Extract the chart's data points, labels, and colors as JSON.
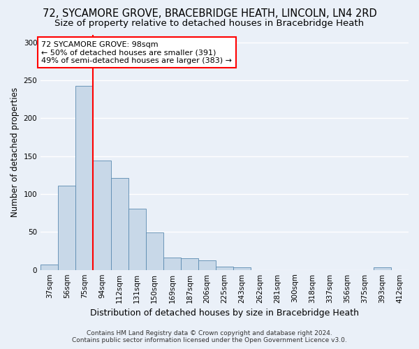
{
  "title": "72, SYCAMORE GROVE, BRACEBRIDGE HEATH, LINCOLN, LN4 2RD",
  "subtitle": "Size of property relative to detached houses in Bracebridge Heath",
  "xlabel": "Distribution of detached houses by size in Bracebridge Heath",
  "ylabel": "Number of detached properties",
  "footnote1": "Contains HM Land Registry data © Crown copyright and database right 2024.",
  "footnote2": "Contains public sector information licensed under the Open Government Licence v3.0.",
  "annotation_line1": "72 SYCAMORE GROVE: 98sqm",
  "annotation_line2": "← 50% of detached houses are smaller (391)",
  "annotation_line3": "49% of semi-detached houses are larger (383) →",
  "bins": [
    "37sqm",
    "56sqm",
    "75sqm",
    "94sqm",
    "112sqm",
    "131sqm",
    "150sqm",
    "169sqm",
    "187sqm",
    "206sqm",
    "225sqm",
    "243sqm",
    "262sqm",
    "281sqm",
    "300sqm",
    "318sqm",
    "337sqm",
    "356sqm",
    "375sqm",
    "393sqm",
    "412sqm"
  ],
  "values": [
    7,
    111,
    243,
    144,
    121,
    81,
    49,
    16,
    15,
    13,
    4,
    3,
    0,
    0,
    0,
    0,
    0,
    0,
    0,
    3,
    0
  ],
  "bar_color": "#c8d8e8",
  "bar_edge_color": "#5a8ab0",
  "vline_x_index": 2.5,
  "vline_color": "red",
  "annotation_box_color": "white",
  "annotation_box_edge": "red",
  "background_color": "#eaf0f8",
  "plot_bg_color": "#eaf0f8",
  "grid_color": "white",
  "title_fontsize": 10.5,
  "subtitle_fontsize": 9.5,
  "ylabel_fontsize": 8.5,
  "xlabel_fontsize": 9,
  "tick_fontsize": 7.5,
  "annotation_fontsize": 8,
  "ylim": [
    0,
    310
  ],
  "yticks": [
    0,
    50,
    100,
    150,
    200,
    250,
    300
  ]
}
